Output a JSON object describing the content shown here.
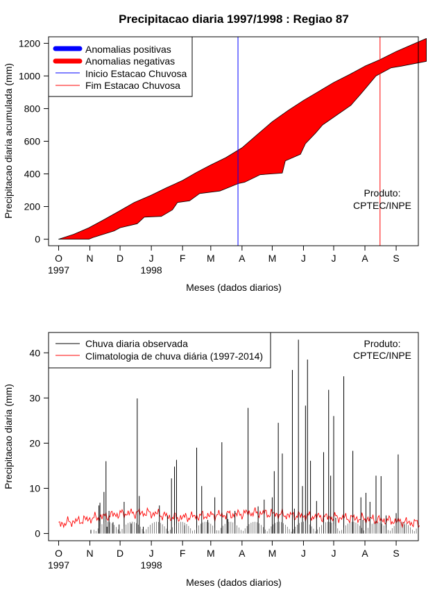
{
  "colors": {
    "positive": "#0000ff",
    "negative": "#ff0000",
    "start_line": "#0000ff",
    "end_line": "#ff0000",
    "observed": "#000000",
    "climatology": "#ff0000"
  },
  "chart_data": [
    {
      "type": "area",
      "title": "Precipitacao diaria 1997/1998 : Regiao 87",
      "xlabel": "Meses (dados diarios)",
      "ylabel": "Precipitacao diaria acumulada (mm)",
      "ylim": [
        -40,
        1240
      ],
      "yticks": [
        0,
        200,
        400,
        600,
        800,
        1000,
        1200
      ],
      "xlim": [
        -10,
        357
      ],
      "month_ticks": [
        {
          "label": "O",
          "day": 0
        },
        {
          "label": "N",
          "day": 31
        },
        {
          "label": "D",
          "day": 61
        },
        {
          "label": "J",
          "day": 92
        },
        {
          "label": "F",
          "day": 123
        },
        {
          "label": "M",
          "day": 151
        },
        {
          "label": "A",
          "day": 182
        },
        {
          "label": "M",
          "day": 212
        },
        {
          "label": "J",
          "day": 243
        },
        {
          "label": "J",
          "day": 273
        },
        {
          "label": "A",
          "day": 304
        },
        {
          "label": "S",
          "day": 335
        }
      ],
      "year_labels": [
        {
          "label": "1997",
          "day": 0
        },
        {
          "label": "1998",
          "day": 92
        }
      ],
      "legend": [
        {
          "label": "Anomalias positivas",
          "style": "thick",
          "color": "#0000ff"
        },
        {
          "label": "Anomalias negativas",
          "style": "thick",
          "color": "#ff0000"
        },
        {
          "label": "Inicio Estacao Chuvosa",
          "style": "thin",
          "color": "#0000ff"
        },
        {
          "label": "Fim Estacao Chuvosa",
          "style": "thin",
          "color": "#ff0000"
        }
      ],
      "annotation": [
        "Produto:",
        "CPTEC/INPE"
      ],
      "rainy_season_start_day": 178,
      "rainy_season_end_day": 319,
      "series": [
        {
          "name": "Climatologia acumulada (curva superior)",
          "days": [
            0,
            15,
            30,
            45,
            61,
            75,
            92,
            107,
            123,
            137,
            151,
            166,
            182,
            197,
            212,
            228,
            243,
            258,
            273,
            289,
            304,
            319,
            335,
            350,
            365
          ],
          "values": [
            0,
            30,
            70,
            120,
            175,
            225,
            270,
            315,
            360,
            410,
            455,
            500,
            560,
            640,
            720,
            790,
            850,
            905,
            960,
            1010,
            1060,
            1100,
            1150,
            1190,
            1230
          ]
        },
        {
          "name": "Observado acumulado (curva inferior)",
          "days": [
            0,
            30,
            34,
            55,
            61,
            78,
            85,
            102,
            113,
            118,
            130,
            140,
            160,
            178,
            185,
            200,
            222,
            225,
            240,
            245,
            255,
            262,
            290,
            300,
            315,
            330,
            340,
            365
          ],
          "values": [
            0,
            0,
            10,
            50,
            70,
            95,
            135,
            140,
            180,
            225,
            235,
            280,
            295,
            340,
            350,
            395,
            405,
            480,
            520,
            585,
            650,
            700,
            820,
            890,
            1000,
            1050,
            1060,
            1090
          ]
        }
      ]
    },
    {
      "type": "line",
      "xlabel": "Meses (dados diarios)",
      "ylabel": "Precipitacao diaria (mm)",
      "ylim": [
        -1.6,
        44.5
      ],
      "yticks": [
        0,
        10,
        20,
        30,
        40
      ],
      "xlim": [
        -10,
        357
      ],
      "month_ticks": [
        {
          "label": "O",
          "day": 0
        },
        {
          "label": "N",
          "day": 31
        },
        {
          "label": "D",
          "day": 61
        },
        {
          "label": "J",
          "day": 92
        },
        {
          "label": "F",
          "day": 123
        },
        {
          "label": "M",
          "day": 151
        },
        {
          "label": "A",
          "day": 182
        },
        {
          "label": "M",
          "day": 212
        },
        {
          "label": "J",
          "day": 243
        },
        {
          "label": "J",
          "day": 273
        },
        {
          "label": "A",
          "day": 304
        },
        {
          "label": "S",
          "day": 335
        }
      ],
      "year_labels": [
        {
          "label": "1997",
          "day": 0
        },
        {
          "label": "1998",
          "day": 92
        }
      ],
      "legend": [
        {
          "label": "Chuva diaria observada",
          "style": "thin",
          "color": "#000000"
        },
        {
          "label": "Climatologia de chuva diária (1997-2014)",
          "style": "thin",
          "color": "#ff0000"
        }
      ],
      "annotation": [
        "Produto:",
        "CPTEC/INPE"
      ],
      "observed_spikes": {
        "days": [
          32,
          40,
          41,
          45,
          47,
          48,
          50,
          54,
          60,
          65,
          72,
          78,
          80,
          84,
          100,
          108,
          112,
          115,
          117,
          125,
          137,
          142,
          148,
          155,
          162,
          167,
          168,
          175,
          188,
          198,
          204,
          212,
          214,
          218,
          222,
          232,
          234,
          238,
          242,
          245,
          247,
          250,
          256,
          263,
          268,
          270,
          273,
          275,
          283,
          292,
          300,
          302,
          305,
          309,
          315,
          320,
          325,
          335,
          337,
          343
        ],
        "values": [
          0.8,
          6.2,
          6.8,
          9.2,
          16.0,
          1.5,
          5.0,
          2.5,
          2.0,
          7.0,
          2.2,
          29.9,
          8.3,
          1.5,
          6.2,
          4.0,
          12.2,
          14.8,
          16.3,
          1.8,
          19.0,
          10.5,
          3.0,
          8.0,
          20.2,
          4.5,
          3.2,
          5.0,
          27.8,
          6.0,
          7.5,
          8.0,
          13.8,
          24.5,
          17.7,
          36.2,
          5.5,
          42.9,
          10.5,
          28.3,
          38.5,
          16.1,
          7.2,
          18.0,
          31.8,
          12.8,
          26.0,
          3.5,
          34.8,
          18.3,
          8.0,
          3.0,
          9.0,
          7.0,
          12.8,
          12.7,
          4.0,
          4.5,
          17.5,
          2.0
        ]
      },
      "climatology": {
        "days": [
          0,
          10,
          20,
          30,
          40,
          50,
          60,
          70,
          80,
          90,
          100,
          110,
          120,
          130,
          140,
          150,
          160,
          170,
          180,
          190,
          200,
          210,
          220,
          230,
          240,
          250,
          260,
          270,
          280,
          290,
          300,
          310,
          320,
          330,
          340,
          350,
          358
        ],
        "values": [
          2.0,
          2.5,
          2.8,
          3.2,
          3.6,
          4.0,
          4.3,
          4.5,
          4.6,
          4.5,
          4.3,
          3.6,
          3.5,
          3.7,
          3.9,
          4.0,
          4.1,
          4.2,
          4.3,
          4.6,
          4.5,
          4.4,
          4.2,
          4.0,
          3.9,
          3.8,
          3.7,
          3.6,
          3.5,
          3.4,
          3.3,
          3.2,
          3.0,
          2.8,
          2.6,
          2.4,
          2.2
        ]
      }
    }
  ]
}
